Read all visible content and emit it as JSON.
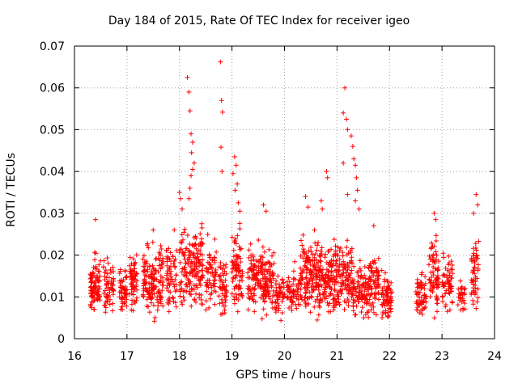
{
  "chart_data": {
    "type": "scatter",
    "title": "Day 184 of 2015, Rate Of TEC Index for receiver igeo",
    "xlabel": "GPS time / hours",
    "ylabel": "ROTI / TECUs",
    "xlim": [
      16,
      24
    ],
    "ylim": [
      0,
      0.07
    ],
    "xticks": [
      "16",
      "17",
      "18",
      "19",
      "20",
      "21",
      "22",
      "23",
      "24"
    ],
    "yticks": [
      "0",
      "0.01",
      "0.02",
      "0.03",
      "0.04",
      "0.05",
      "0.06",
      "0.07"
    ],
    "grid": true,
    "marker": "+",
    "color": "#ff0000",
    "clusters": [
      {
        "x": [
          16.3,
          16.5
        ],
        "y": [
          0.004,
          0.022
        ],
        "n": 90
      },
      {
        "x": [
          16.55,
          16.75
        ],
        "y": [
          0.005,
          0.022
        ],
        "n": 60
      },
      {
        "x": [
          16.85,
          17.0
        ],
        "y": [
          0.006,
          0.019
        ],
        "n": 50
      },
      {
        "x": [
          17.05,
          17.2
        ],
        "y": [
          0.004,
          0.025
        ],
        "n": 60
      },
      {
        "x": [
          17.3,
          17.5
        ],
        "y": [
          0.005,
          0.025
        ],
        "n": 80
      },
      {
        "x": [
          17.5,
          17.7
        ],
        "y": [
          0.002,
          0.026
        ],
        "n": 70
      },
      {
        "x": [
          17.75,
          17.95
        ],
        "y": [
          0.004,
          0.026
        ],
        "n": 60
      },
      {
        "x": [
          18.0,
          18.45
        ],
        "y": [
          0.005,
          0.03
        ],
        "n": 170
      },
      {
        "x": [
          18.5,
          18.7
        ],
        "y": [
          0.005,
          0.027
        ],
        "n": 60
      },
      {
        "x": [
          18.75,
          18.9
        ],
        "y": [
          0.004,
          0.022
        ],
        "n": 50
      },
      {
        "x": [
          19.0,
          19.2
        ],
        "y": [
          0.005,
          0.03
        ],
        "n": 80
      },
      {
        "x": [
          19.3,
          19.8
        ],
        "y": [
          0.004,
          0.025
        ],
        "n": 180
      },
      {
        "x": [
          19.8,
          20.0
        ],
        "y": [
          0.004,
          0.018
        ],
        "n": 50
      },
      {
        "x": [
          20.05,
          20.3
        ],
        "y": [
          0.005,
          0.02
        ],
        "n": 60
      },
      {
        "x": [
          20.3,
          20.6
        ],
        "y": [
          0.004,
          0.028
        ],
        "n": 120
      },
      {
        "x": [
          20.6,
          20.9
        ],
        "y": [
          0.004,
          0.027
        ],
        "n": 130
      },
      {
        "x": [
          20.9,
          21.3
        ],
        "y": [
          0.003,
          0.026
        ],
        "n": 150
      },
      {
        "x": [
          21.3,
          21.6
        ],
        "y": [
          0.004,
          0.02
        ],
        "n": 100
      },
      {
        "x": [
          21.6,
          21.8
        ],
        "y": [
          0.004,
          0.025
        ],
        "n": 70
      },
      {
        "x": [
          21.85,
          22.05
        ],
        "y": [
          0.003,
          0.018
        ],
        "n": 70
      },
      {
        "x": [
          22.5,
          22.7
        ],
        "y": [
          0.004,
          0.018
        ],
        "n": 60
      },
      {
        "x": [
          22.75,
          22.95
        ],
        "y": [
          0.004,
          0.028
        ],
        "n": 70
      },
      {
        "x": [
          23.0,
          23.2
        ],
        "y": [
          0.004,
          0.022
        ],
        "n": 60
      },
      {
        "x": [
          23.3,
          23.45
        ],
        "y": [
          0.006,
          0.015
        ],
        "n": 30
      },
      {
        "x": [
          23.55,
          23.7
        ],
        "y": [
          0.006,
          0.028
        ],
        "n": 50
      }
    ],
    "outliers": [
      [
        16.4,
        0.0285
      ],
      [
        17.5,
        0.026
      ],
      [
        17.9,
        0.026
      ],
      [
        18.0,
        0.035
      ],
      [
        18.02,
        0.0335
      ],
      [
        18.05,
        0.031
      ],
      [
        18.15,
        0.0625
      ],
      [
        18.18,
        0.059
      ],
      [
        18.2,
        0.0545
      ],
      [
        18.22,
        0.049
      ],
      [
        18.25,
        0.047
      ],
      [
        18.23,
        0.0445
      ],
      [
        18.28,
        0.042
      ],
      [
        18.25,
        0.0405
      ],
      [
        18.22,
        0.039
      ],
      [
        18.2,
        0.036
      ],
      [
        18.18,
        0.0335
      ],
      [
        18.78,
        0.0662
      ],
      [
        18.8,
        0.057
      ],
      [
        18.82,
        0.0542
      ],
      [
        18.79,
        0.0458
      ],
      [
        18.81,
        0.04
      ],
      [
        19.05,
        0.0435
      ],
      [
        19.08,
        0.0415
      ],
      [
        19.02,
        0.0395
      ],
      [
        19.1,
        0.037
      ],
      [
        19.06,
        0.0355
      ],
      [
        19.12,
        0.0325
      ],
      [
        19.15,
        0.0305
      ],
      [
        19.6,
        0.032
      ],
      [
        19.65,
        0.0305
      ],
      [
        20.4,
        0.034
      ],
      [
        20.45,
        0.0315
      ],
      [
        20.7,
        0.033
      ],
      [
        20.72,
        0.031
      ],
      [
        20.8,
        0.04
      ],
      [
        20.82,
        0.0385
      ],
      [
        21.15,
        0.06
      ],
      [
        21.12,
        0.054
      ],
      [
        21.18,
        0.0525
      ],
      [
        21.2,
        0.05
      ],
      [
        21.27,
        0.0485
      ],
      [
        21.3,
        0.046
      ],
      [
        21.32,
        0.043
      ],
      [
        21.35,
        0.0415
      ],
      [
        21.37,
        0.0385
      ],
      [
        21.39,
        0.0355
      ],
      [
        21.2,
        0.0345
      ],
      [
        21.35,
        0.033
      ],
      [
        21.42,
        0.031
      ],
      [
        21.12,
        0.042
      ],
      [
        21.7,
        0.027
      ],
      [
        22.85,
        0.03
      ],
      [
        22.88,
        0.0285
      ],
      [
        23.65,
        0.0345
      ],
      [
        23.68,
        0.032
      ],
      [
        23.6,
        0.03
      ]
    ]
  }
}
